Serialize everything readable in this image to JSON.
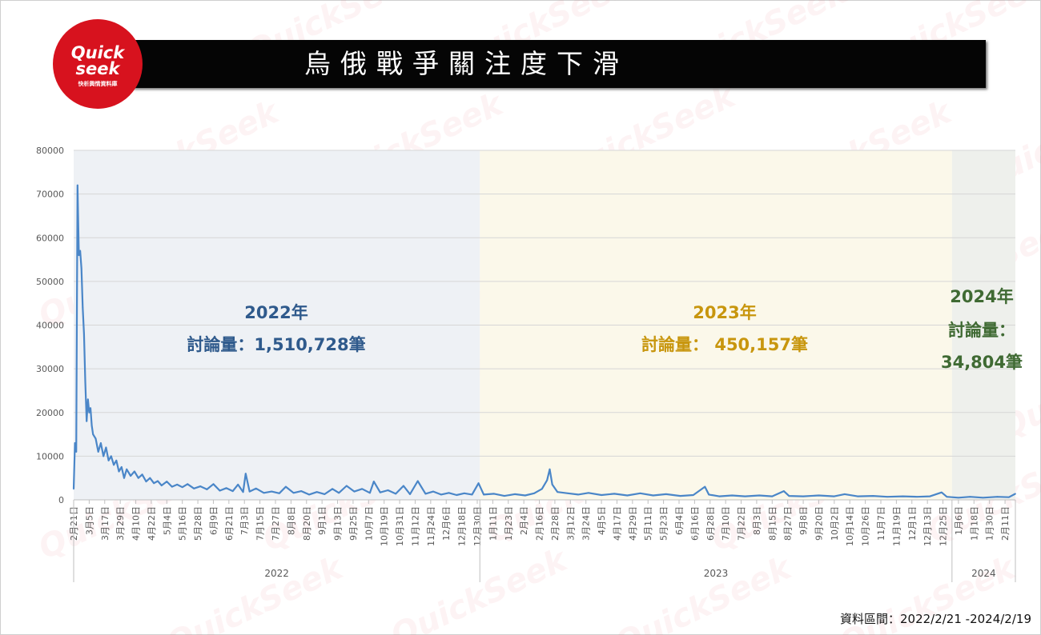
{
  "logo": {
    "mark_line1": "Quick",
    "mark_line2": "seek",
    "tagline": "快析輿情資料庫",
    "brand_color": "#d7121e"
  },
  "title": "烏俄戰爭關注度下滑",
  "source_note": "資料區間：2022/2/21 -2024/2/19",
  "watermark_text": "QuickSeek",
  "chart_data": {
    "type": "line",
    "title": "",
    "xlabel": "",
    "ylabel": "",
    "ylim": [
      0,
      80000
    ],
    "yticks": [
      0,
      10000,
      20000,
      30000,
      40000,
      50000,
      60000,
      70000,
      80000
    ],
    "ytick_labels": [
      "0",
      "10000",
      "20000",
      "30000",
      "40000",
      "50000",
      "60000",
      "70000",
      "80000"
    ],
    "grid": true,
    "legend": "none",
    "series_color": "#4a86c8",
    "date_range": [
      "2022-02-21",
      "2024-02-19"
    ],
    "x_tick_labels": [
      "2月21日",
      "3月5日",
      "3月17日",
      "3月29日",
      "4月10日",
      "4月22日",
      "5月4日",
      "5月16日",
      "5月28日",
      "6月9日",
      "6月21日",
      "7月3日",
      "7月15日",
      "7月27日",
      "8月8日",
      "8月20日",
      "9月1日",
      "9月13日",
      "9月25日",
      "10月7日",
      "10月19日",
      "10月31日",
      "11月12日",
      "11月24日",
      "12月6日",
      "12月18日",
      "12月30日",
      "1月11日",
      "1月23日",
      "2月4日",
      "2月16日",
      "2月28日",
      "3月12日",
      "3月24日",
      "4月5日",
      "4月17日",
      "4月29日",
      "5月11日",
      "5月23日",
      "6月4日",
      "6月16日",
      "6月28日",
      "7月10日",
      "7月22日",
      "8月3日",
      "8月15日",
      "8月27日",
      "9月8日",
      "9月20日",
      "10月2日",
      "10月14日",
      "10月26日",
      "11月7日",
      "11月19日",
      "12月1日",
      "12月13日",
      "12月25日",
      "1月6日",
      "1月18日",
      "1月30日",
      "2月11日"
    ],
    "year_labels": [
      "2022",
      "2023",
      "2024"
    ],
    "periods": [
      {
        "year": "2022",
        "start": "2022-02-21",
        "end": "2022-12-31",
        "fill": "#eef1f5",
        "label": "2022年",
        "sub_label": "討論量：1,510,728筆",
        "label_color": "#2f5a8c"
      },
      {
        "year": "2023",
        "start": "2023-01-01",
        "end": "2023-12-31",
        "fill": "#fbf8ea",
        "label": "2023年",
        "sub_label": "討論量： 450,157筆",
        "label_color": "#c8960e"
      },
      {
        "year": "2024",
        "start": "2024-01-01",
        "end": "2024-02-19",
        "fill": "#eef0ec",
        "label": "2024年",
        "sub_label": "討論量：",
        "sub_label2": "34,804筆",
        "label_color": "#3f6a33"
      }
    ],
    "series": [
      {
        "points": [
          [
            "2022-02-21",
            2500
          ],
          [
            "2022-02-22",
            13000
          ],
          [
            "2022-02-23",
            11000
          ],
          [
            "2022-02-24",
            72000
          ],
          [
            "2022-02-25",
            56000
          ],
          [
            "2022-02-26",
            57000
          ],
          [
            "2022-02-27",
            53000
          ],
          [
            "2022-02-28",
            44000
          ],
          [
            "2022-03-01",
            38000
          ],
          [
            "2022-03-02",
            27000
          ],
          [
            "2022-03-03",
            18000
          ],
          [
            "2022-03-04",
            23000
          ],
          [
            "2022-03-05",
            20000
          ],
          [
            "2022-03-06",
            21000
          ],
          [
            "2022-03-07",
            17000
          ],
          [
            "2022-03-08",
            15000
          ],
          [
            "2022-03-10",
            14000
          ],
          [
            "2022-03-12",
            11000
          ],
          [
            "2022-03-14",
            13000
          ],
          [
            "2022-03-16",
            10000
          ],
          [
            "2022-03-18",
            12000
          ],
          [
            "2022-03-20",
            9000
          ],
          [
            "2022-03-22",
            10000
          ],
          [
            "2022-03-24",
            8000
          ],
          [
            "2022-03-26",
            9000
          ],
          [
            "2022-03-28",
            6500
          ],
          [
            "2022-03-30",
            7500
          ],
          [
            "2022-04-01",
            5000
          ],
          [
            "2022-04-03",
            7000
          ],
          [
            "2022-04-06",
            5500
          ],
          [
            "2022-04-09",
            6500
          ],
          [
            "2022-04-12",
            5000
          ],
          [
            "2022-04-15",
            5800
          ],
          [
            "2022-04-18",
            4200
          ],
          [
            "2022-04-21",
            5000
          ],
          [
            "2022-04-24",
            3800
          ],
          [
            "2022-04-27",
            4300
          ],
          [
            "2022-04-30",
            3300
          ],
          [
            "2022-05-04",
            4200
          ],
          [
            "2022-05-08",
            3000
          ],
          [
            "2022-05-12",
            3500
          ],
          [
            "2022-05-16",
            2900
          ],
          [
            "2022-05-20",
            3600
          ],
          [
            "2022-05-25",
            2600
          ],
          [
            "2022-05-30",
            3100
          ],
          [
            "2022-06-04",
            2400
          ],
          [
            "2022-06-09",
            3600
          ],
          [
            "2022-06-14",
            2100
          ],
          [
            "2022-06-19",
            2700
          ],
          [
            "2022-06-24",
            2000
          ],
          [
            "2022-06-28",
            3500
          ],
          [
            "2022-07-02",
            1800
          ],
          [
            "2022-07-04",
            6000
          ],
          [
            "2022-07-07",
            1900
          ],
          [
            "2022-07-12",
            2600
          ],
          [
            "2022-07-18",
            1600
          ],
          [
            "2022-07-24",
            1900
          ],
          [
            "2022-07-30",
            1500
          ],
          [
            "2022-08-04",
            3000
          ],
          [
            "2022-08-10",
            1600
          ],
          [
            "2022-08-16",
            2000
          ],
          [
            "2022-08-22",
            1200
          ],
          [
            "2022-08-28",
            1800
          ],
          [
            "2022-09-03",
            1300
          ],
          [
            "2022-09-09",
            2500
          ],
          [
            "2022-09-14",
            1600
          ],
          [
            "2022-09-20",
            3200
          ],
          [
            "2022-09-26",
            1900
          ],
          [
            "2022-10-02",
            2500
          ],
          [
            "2022-10-08",
            1600
          ],
          [
            "2022-10-11",
            4200
          ],
          [
            "2022-10-16",
            1700
          ],
          [
            "2022-10-22",
            2200
          ],
          [
            "2022-10-28",
            1400
          ],
          [
            "2022-11-03",
            3200
          ],
          [
            "2022-11-08",
            1300
          ],
          [
            "2022-11-14",
            4300
          ],
          [
            "2022-11-20",
            1400
          ],
          [
            "2022-11-26",
            1900
          ],
          [
            "2022-12-02",
            1200
          ],
          [
            "2022-12-08",
            1600
          ],
          [
            "2022-12-14",
            1100
          ],
          [
            "2022-12-20",
            1500
          ],
          [
            "2022-12-26",
            1200
          ],
          [
            "2022-12-31",
            3800
          ],
          [
            "2023-01-04",
            1200
          ],
          [
            "2023-01-12",
            1400
          ],
          [
            "2023-01-20",
            900
          ],
          [
            "2023-01-28",
            1300
          ],
          [
            "2023-02-05",
            1000
          ],
          [
            "2023-02-12",
            1500
          ],
          [
            "2023-02-18",
            2500
          ],
          [
            "2023-02-22",
            4500
          ],
          [
            "2023-02-24",
            7000
          ],
          [
            "2023-02-26",
            3500
          ],
          [
            "2023-03-02",
            1800
          ],
          [
            "2023-03-10",
            1500
          ],
          [
            "2023-03-18",
            1200
          ],
          [
            "2023-03-26",
            1600
          ],
          [
            "2023-04-05",
            1100
          ],
          [
            "2023-04-15",
            1400
          ],
          [
            "2023-04-25",
            1000
          ],
          [
            "2023-05-05",
            1500
          ],
          [
            "2023-05-15",
            1000
          ],
          [
            "2023-05-25",
            1300
          ],
          [
            "2023-06-05",
            900
          ],
          [
            "2023-06-15",
            1100
          ],
          [
            "2023-06-24",
            3000
          ],
          [
            "2023-06-27",
            1200
          ],
          [
            "2023-07-05",
            800
          ],
          [
            "2023-07-15",
            1000
          ],
          [
            "2023-07-25",
            800
          ],
          [
            "2023-08-05",
            1000
          ],
          [
            "2023-08-15",
            800
          ],
          [
            "2023-08-24",
            2000
          ],
          [
            "2023-08-28",
            900
          ],
          [
            "2023-09-08",
            800
          ],
          [
            "2023-09-20",
            1000
          ],
          [
            "2023-10-02",
            800
          ],
          [
            "2023-10-10",
            1300
          ],
          [
            "2023-10-20",
            800
          ],
          [
            "2023-11-01",
            900
          ],
          [
            "2023-11-12",
            700
          ],
          [
            "2023-11-24",
            800
          ],
          [
            "2023-12-05",
            700
          ],
          [
            "2023-12-15",
            800
          ],
          [
            "2023-12-24",
            1700
          ],
          [
            "2023-12-28",
            700
          ],
          [
            "2024-01-06",
            500
          ],
          [
            "2024-01-15",
            700
          ],
          [
            "2024-01-25",
            500
          ],
          [
            "2024-02-05",
            700
          ],
          [
            "2024-02-14",
            600
          ],
          [
            "2024-02-19",
            1400
          ]
        ]
      }
    ]
  }
}
